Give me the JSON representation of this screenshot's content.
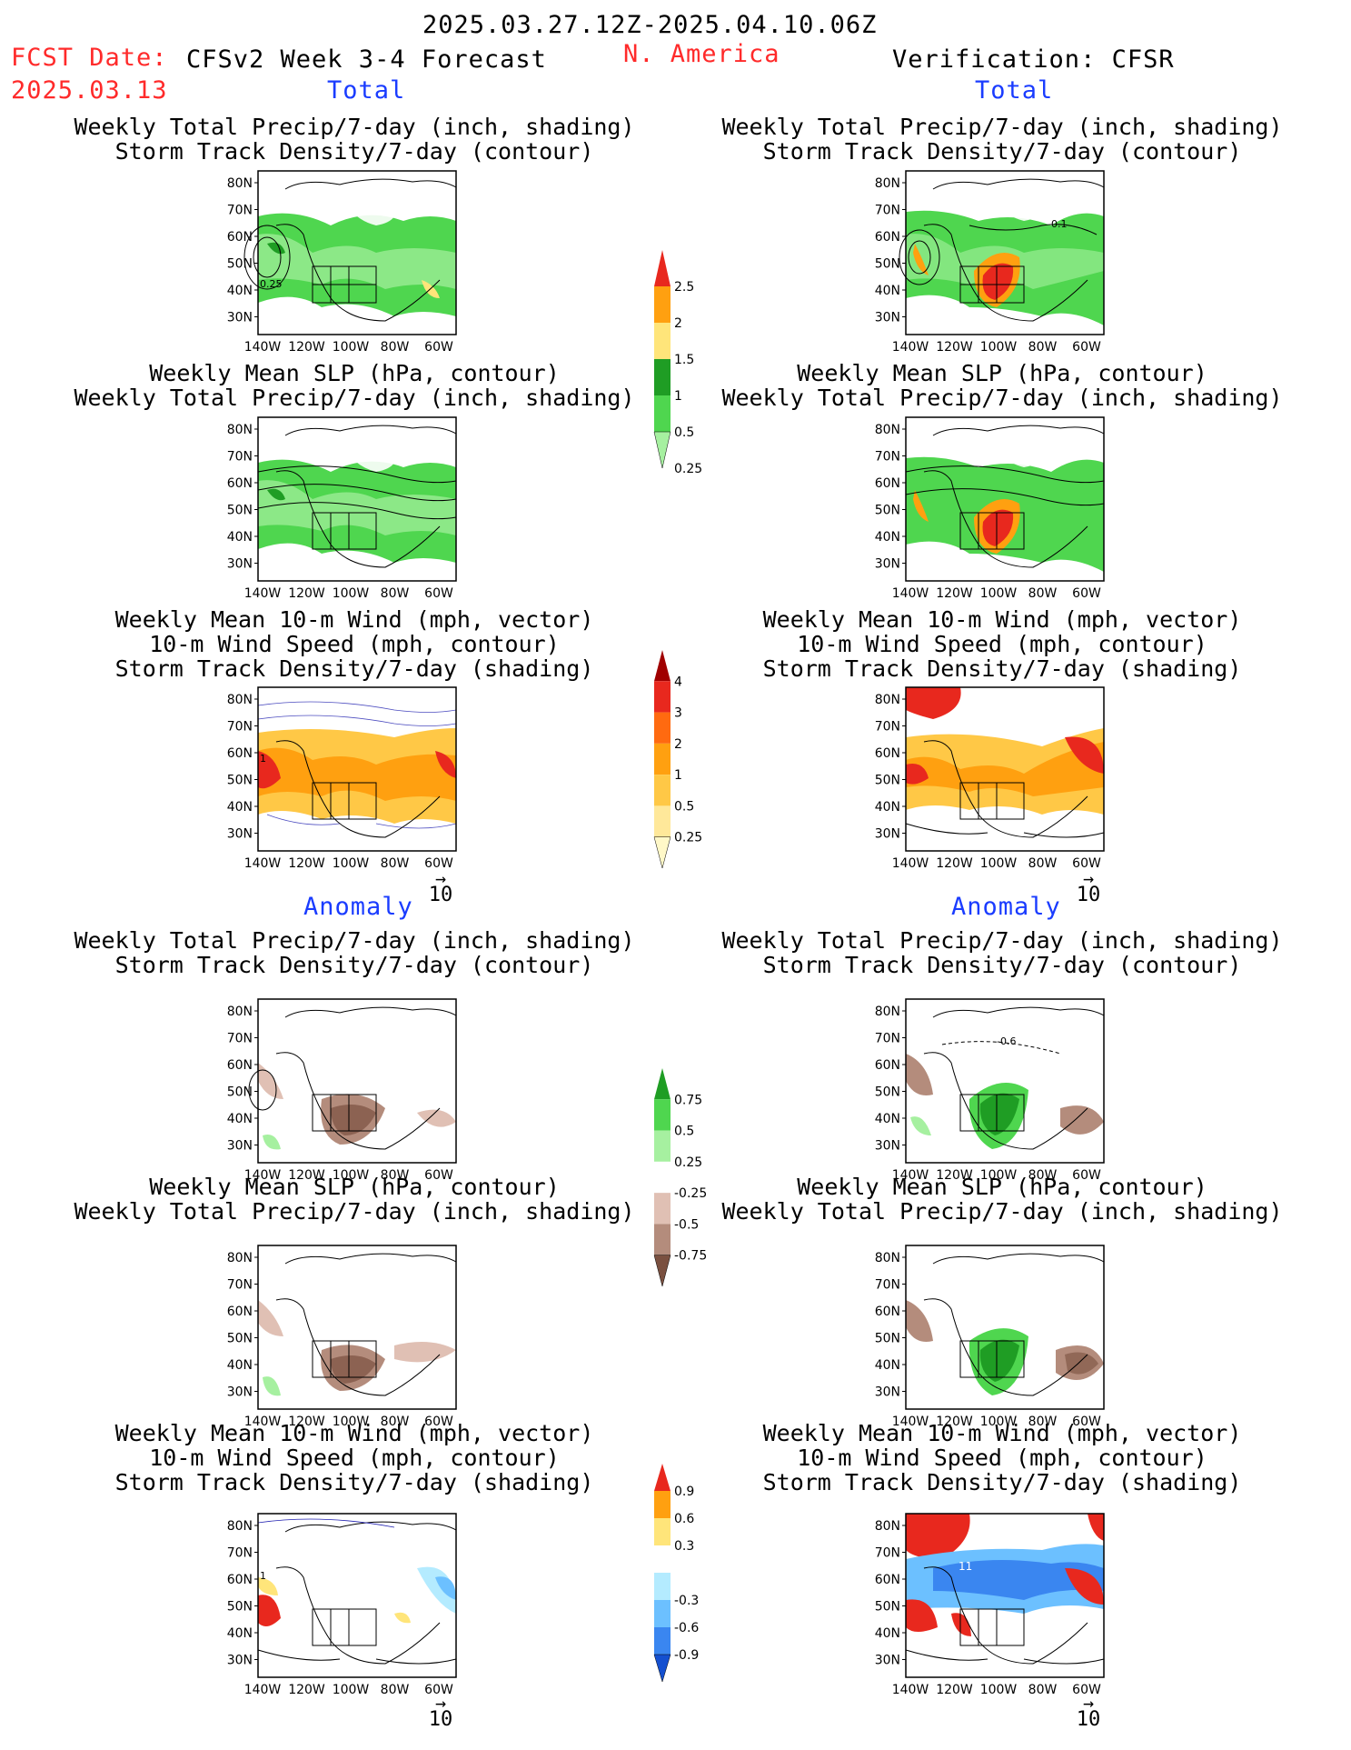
{
  "header": {
    "date_range": "2025.03.27.12Z-2025.04.10.06Z",
    "fcst_label": "FCST Date:",
    "fcst_date": "2025.03.13",
    "product": "CFSv2 Week 3-4 Forecast",
    "region": "N. America",
    "verification": "Verification: CFSR"
  },
  "sections": {
    "total": "Total",
    "anomaly": "Anomaly"
  },
  "panel_titles": {
    "precip_storm": [
      "Weekly Total Precip/7-day (inch, shading)",
      "Storm Track Density/7-day (contour)"
    ],
    "slp_precip": [
      "Weekly Mean SLP (hPa, contour)",
      "Weekly Total Precip/7-day (inch, shading)"
    ],
    "wind_storm": [
      "Weekly Mean 10-m Wind (mph, vector)",
      "10-m Wind Speed (mph, contour)",
      "Storm Track Density/7-day (shading)"
    ]
  },
  "axes": {
    "lat_labels": [
      "80N",
      "70N",
      "60N",
      "50N",
      "40N",
      "30N"
    ],
    "lon_labels": [
      "140W",
      "120W",
      "100W",
      "80W",
      "60W"
    ]
  },
  "map_annotations": {
    "left_precip_contour": "0.25",
    "right_precip_contour": "0.1",
    "right_anom_contour": "-0.6",
    "wind_label": "1",
    "right_wind_label": "11"
  },
  "vector_ref": "10",
  "colorbars": {
    "precip_total": {
      "labels": [
        "2.5",
        "2",
        "1.5",
        "1",
        "0.5",
        "0.25"
      ],
      "colors": [
        "#e8281e",
        "#ffa010",
        "#ffe57a",
        "#1f9d24",
        "#4fd64f",
        "#a6f0a0"
      ]
    },
    "storm_total": {
      "labels": [
        "4",
        "3",
        "2",
        "1",
        "0.5",
        "0.25"
      ],
      "colors": [
        "#a00000",
        "#e8281e",
        "#ff6a10",
        "#ffa010",
        "#ffc846",
        "#ffe89a",
        "#fff8c8"
      ]
    },
    "precip_anom": {
      "labels": [
        "0.75",
        "0.5",
        "0.25",
        "-0.25",
        "-0.5",
        "-0.75"
      ],
      "colors": [
        "#1f9d24",
        "#4fd64f",
        "#a6f0a0",
        "#ffffff",
        "#e0c0b4",
        "#b48c7c",
        "#7a5040"
      ]
    },
    "storm_anom": {
      "labels": [
        "0.9",
        "0.6",
        "0.3",
        "-0.3",
        "-0.6",
        "-0.9"
      ],
      "colors": [
        "#e8281e",
        "#ffa010",
        "#ffe57a",
        "#ffffff",
        "#b4ebff",
        "#6cc0ff",
        "#3a86f0",
        "#1450d0"
      ]
    }
  }
}
